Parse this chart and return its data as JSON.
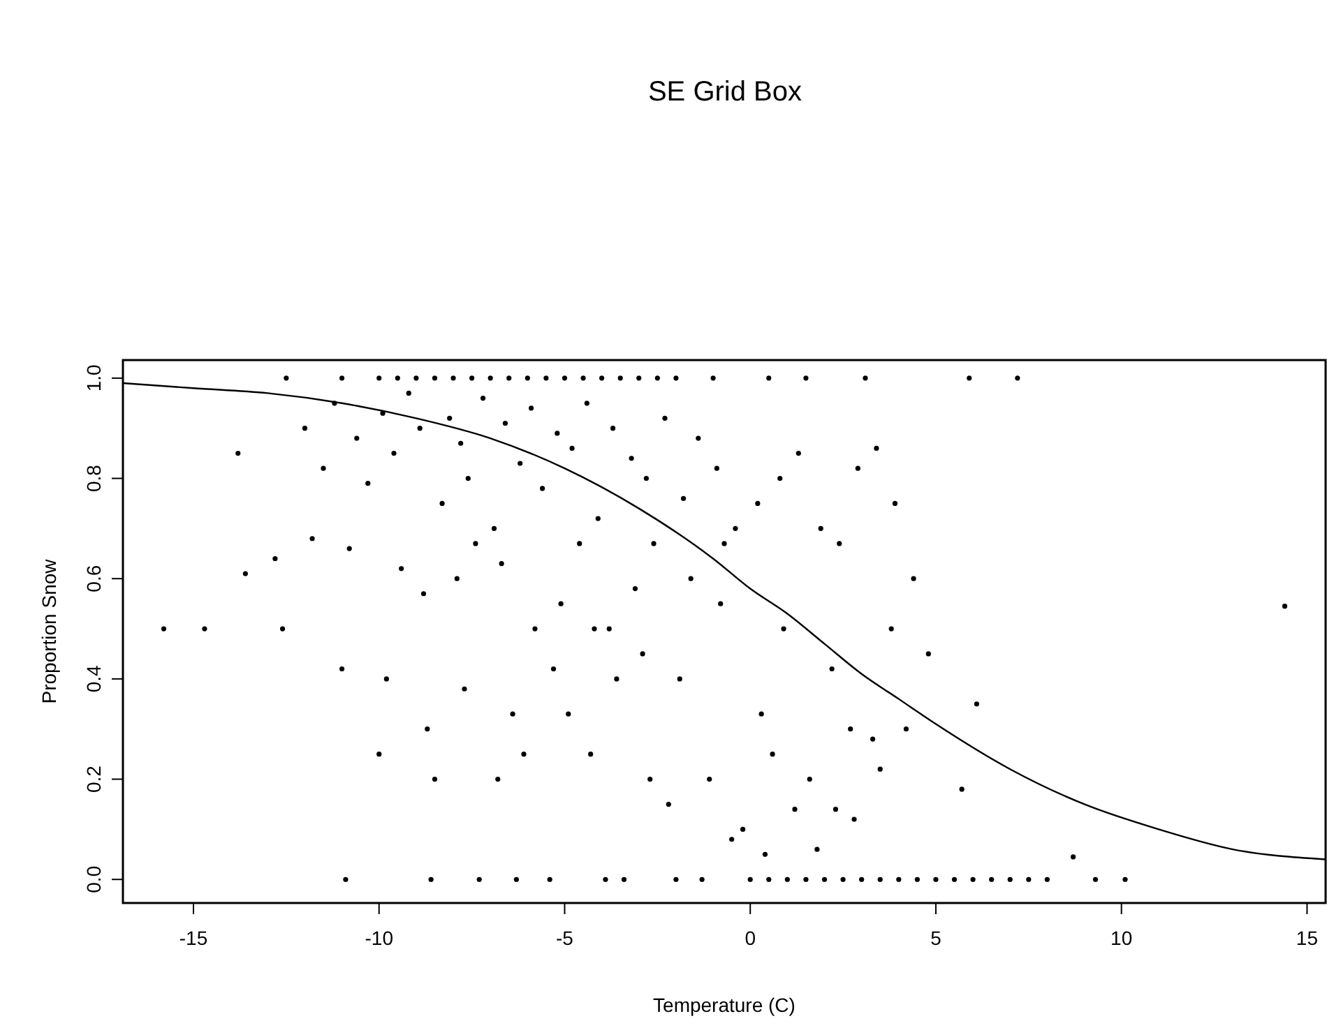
{
  "chart_data": {
    "type": "scatter",
    "title": "SE Grid Box",
    "xlabel": "Temperature (C)",
    "ylabel": "Proportion Snow",
    "xlim": [
      -16.9,
      15.5
    ],
    "ylim": [
      -0.047,
      1.036
    ],
    "xticks": [
      -15,
      -10,
      -5,
      0,
      5,
      10,
      15
    ],
    "yticks": [
      {
        "value": 0,
        "label": "0.0"
      },
      0.2,
      0.4,
      0.6,
      0.8,
      {
        "value": 1,
        "label": "1.0"
      }
    ],
    "grid": false,
    "marker": "circle",
    "series": [
      {
        "type": "scatter",
        "color": "#000000",
        "x": [
          -12.5,
          -11,
          -10,
          -9.5,
          -9,
          -8.5,
          -8,
          -7.5,
          -7,
          -6.5,
          -6,
          -5.5,
          -5,
          -4.5,
          -4,
          -3.5,
          -3,
          -2.5,
          -2,
          -1,
          0.5,
          1.5,
          3.1,
          5.9,
          7.2,
          -10.9,
          -8.6,
          -7.3,
          -6.3,
          -5.4,
          -3.9,
          -3.4,
          -2,
          -1.3,
          0,
          0.5,
          1,
          1.5,
          2,
          2.5,
          3,
          3.5,
          4,
          4.5,
          5,
          5.5,
          6,
          6.5,
          7,
          7.5,
          8,
          9.3,
          10.1,
          -15.8,
          -14.7,
          14.4,
          8.7,
          -13.8,
          -13.6,
          -12.6,
          -12.8,
          -11,
          -10,
          -9.8,
          -8.7,
          -8.5,
          -6.8,
          -12,
          -11.5,
          -11.2,
          -10.6,
          -10.3,
          -9.9,
          -9.6,
          -9.2,
          -8.9,
          -8.3,
          -8.1,
          -7.8,
          -7.6,
          -7.2,
          -6.9,
          -6.6,
          -6.2,
          -5.9,
          -5.6,
          -5.2,
          -4.8,
          -4.4,
          -4.1,
          -3.7,
          -3.2,
          -2.8,
          -2.3,
          -1.8,
          -1.4,
          -0.9,
          -0.4,
          -11.8,
          -10.8,
          -9.4,
          -8.8,
          -7.9,
          -7.4,
          -6.7,
          -5.8,
          -5.1,
          -4.6,
          -3.8,
          -3.1,
          -2.6,
          -1.6,
          -0.7,
          0.2,
          0.8,
          1.3,
          1.9,
          2.4,
          2.9,
          3.4,
          3.9,
          4.4,
          4.8,
          -7.7,
          -6.4,
          -5.3,
          -4.2,
          -2.9,
          -1.9,
          -0.8,
          0.3,
          0.9,
          1.6,
          2.2,
          2.7,
          3.3,
          3.8,
          -6.1,
          -4.9,
          -3.6,
          -2.2,
          -1.1,
          -0.2,
          0.6,
          1.2,
          1.8,
          2.3,
          2.8,
          3.5,
          4.2,
          5.7,
          6.1,
          -4.3,
          -2.7,
          -0.5,
          0.4
        ],
        "values": [
          1,
          1,
          1,
          1,
          1,
          1,
          1,
          1,
          1,
          1,
          1,
          1,
          1,
          1,
          1,
          1,
          1,
          1,
          1,
          1,
          1,
          1,
          1,
          1,
          1,
          0,
          0,
          0,
          0,
          0,
          0,
          0,
          0,
          0,
          0,
          0,
          0,
          0,
          0,
          0,
          0,
          0,
          0,
          0,
          0,
          0,
          0,
          0,
          0,
          0,
          0,
          0,
          0,
          0.5,
          0.5,
          0.545,
          0.045,
          0.85,
          0.61,
          0.5,
          0.64,
          0.42,
          0.25,
          0.4,
          0.3,
          0.2,
          0.2,
          0.9,
          0.82,
          0.95,
          0.88,
          0.79,
          0.93,
          0.85,
          0.97,
          0.9,
          0.75,
          0.92,
          0.87,
          0.8,
          0.96,
          0.7,
          0.91,
          0.83,
          0.94,
          0.78,
          0.89,
          0.86,
          0.95,
          0.72,
          0.9,
          0.84,
          0.8,
          0.92,
          0.76,
          0.88,
          0.82,
          0.7,
          0.68,
          0.66,
          0.62,
          0.57,
          0.6,
          0.67,
          0.63,
          0.5,
          0.55,
          0.67,
          0.5,
          0.58,
          0.67,
          0.6,
          0.67,
          0.75,
          0.8,
          0.85,
          0.7,
          0.67,
          0.82,
          0.86,
          0.75,
          0.6,
          0.45,
          0.38,
          0.33,
          0.42,
          0.5,
          0.45,
          0.4,
          0.55,
          0.33,
          0.5,
          0.2,
          0.42,
          0.3,
          0.28,
          0.5,
          0.25,
          0.33,
          0.4,
          0.15,
          0.2,
          0.1,
          0.25,
          0.14,
          0.06,
          0.14,
          0.12,
          0.22,
          0.3,
          0.18,
          0.35,
          0.25,
          0.2,
          0.08,
          0.05
        ]
      },
      {
        "type": "line",
        "color": "#000000",
        "marker": "none",
        "x": [
          -16.9,
          -15,
          -13,
          -11,
          -9,
          -7,
          -5,
          -3,
          -1,
          0,
          1,
          2,
          3,
          4,
          5,
          7,
          9,
          11,
          13,
          15.5
        ],
        "values": [
          0.99,
          0.98,
          0.97,
          0.95,
          0.92,
          0.88,
          0.82,
          0.74,
          0.64,
          0.58,
          0.53,
          0.47,
          0.41,
          0.36,
          0.31,
          0.22,
          0.15,
          0.1,
          0.06,
          0.04
        ]
      }
    ]
  }
}
